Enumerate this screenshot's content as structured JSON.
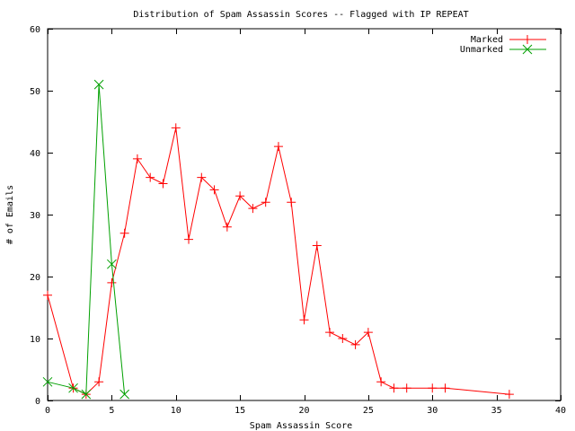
{
  "chart_data": {
    "type": "line",
    "title": "Distribution of Spam Assassin Scores -- Flagged with IP REPEAT",
    "xlabel": "Spam Assassin Score",
    "ylabel": "# of Emails",
    "xlim": [
      0,
      40
    ],
    "ylim": [
      0,
      60
    ],
    "xticks": [
      0,
      5,
      10,
      15,
      20,
      25,
      30,
      35,
      40
    ],
    "yticks": [
      0,
      10,
      20,
      30,
      40,
      50,
      60
    ],
    "grid": false,
    "legend_position": "top-right",
    "series": [
      {
        "name": "Marked",
        "color": "#ff0000",
        "marker": "plus",
        "points": [
          [
            0,
            17
          ],
          [
            2,
            2
          ],
          [
            3,
            1
          ],
          [
            4,
            3
          ],
          [
            5,
            19
          ],
          [
            6,
            27
          ],
          [
            7,
            39
          ],
          [
            8,
            36
          ],
          [
            9,
            35
          ],
          [
            10,
            44
          ],
          [
            11,
            26
          ],
          [
            12,
            36
          ],
          [
            13,
            34
          ],
          [
            14,
            28
          ],
          [
            15,
            33
          ],
          [
            16,
            31
          ],
          [
            17,
            32
          ],
          [
            18,
            41
          ],
          [
            19,
            32
          ],
          [
            20,
            13
          ],
          [
            21,
            25
          ],
          [
            22,
            11
          ],
          [
            23,
            10
          ],
          [
            24,
            9
          ],
          [
            25,
            11
          ],
          [
            26,
            3
          ],
          [
            27,
            2
          ],
          [
            28,
            2
          ],
          [
            30,
            2
          ],
          [
            31,
            2
          ],
          [
            36,
            1
          ]
        ]
      },
      {
        "name": "Unmarked",
        "color": "#00a000",
        "marker": "cross",
        "points": [
          [
            0,
            3
          ],
          [
            2,
            2
          ],
          [
            3,
            1
          ],
          [
            4,
            51
          ],
          [
            5,
            22
          ],
          [
            6,
            1
          ]
        ]
      }
    ]
  }
}
